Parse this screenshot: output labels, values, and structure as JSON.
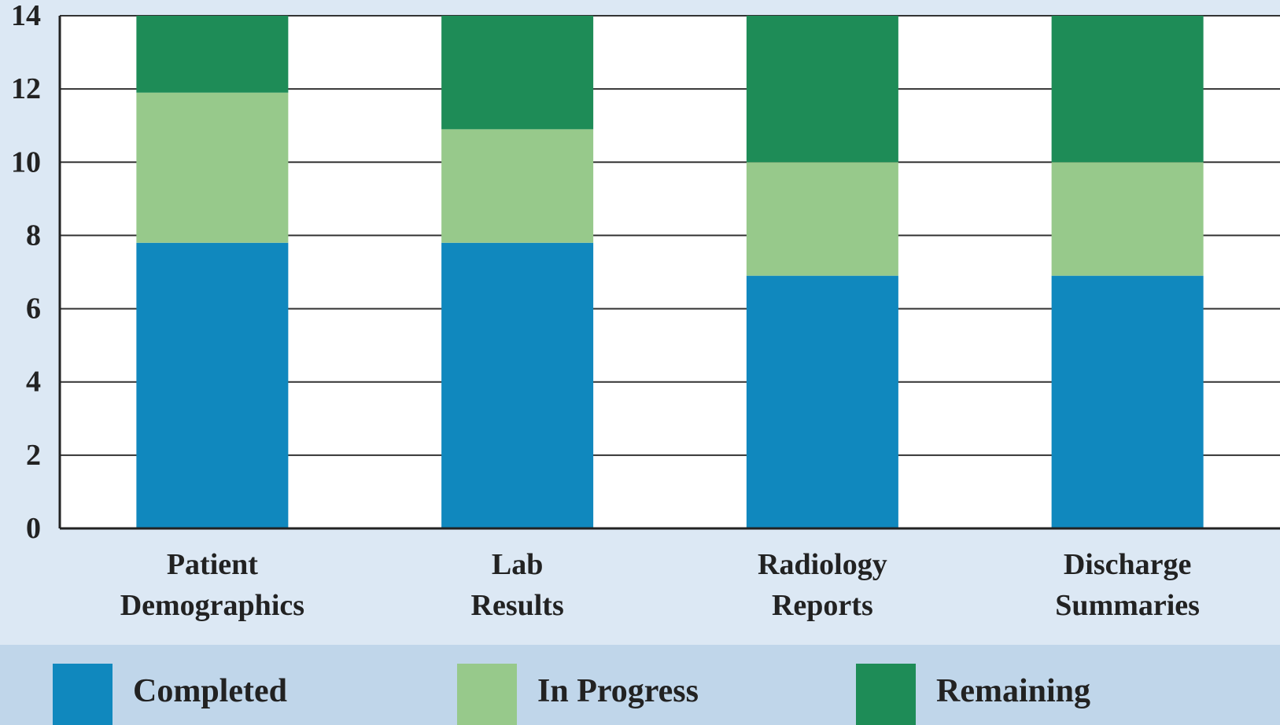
{
  "chart_data": {
    "type": "stacked_bar",
    "categories": [
      "Patient Demographics",
      "Lab Results",
      "Radiology Reports",
      "Discharge Summaries"
    ],
    "series": [
      {
        "name": "Completed",
        "color": "#1088be",
        "values": [
          7.8,
          7.8,
          6.9,
          6.9
        ]
      },
      {
        "name": "In Progress",
        "color": "#97c98b",
        "values": [
          4.1,
          3.1,
          3.1,
          3.1
        ]
      },
      {
        "name": "Remaining",
        "color": "#1e8c57",
        "values": [
          2.1,
          3.1,
          4,
          4
        ]
      }
    ],
    "ylim": [
      0,
      14
    ],
    "yticks": [
      0,
      2,
      4,
      6,
      8,
      10,
      12,
      14
    ],
    "grid": true,
    "legend": "bottom"
  }
}
